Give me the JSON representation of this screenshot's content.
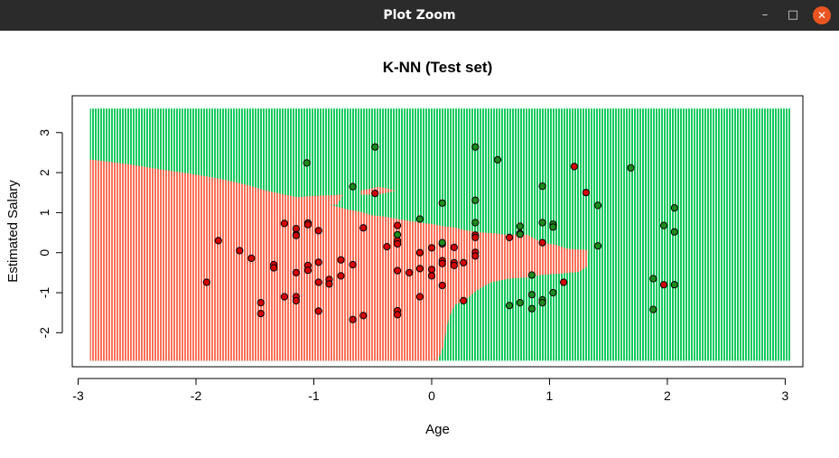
{
  "window": {
    "title": "Plot Zoom",
    "controls": {
      "minimize": "–",
      "maximize": "□",
      "close": "✕"
    }
  },
  "chart_data": {
    "type": "scatter",
    "title": "K-NN (Test set)",
    "xlabel": "Age",
    "ylabel": "Estimated Salary",
    "xlim": [
      -3.05,
      3.15
    ],
    "ylim": [
      -2.85,
      3.92
    ],
    "xticks": [
      -3,
      -2,
      -1,
      0,
      1,
      2,
      3
    ],
    "yticks": [
      -2,
      -1,
      0,
      1,
      2,
      3
    ],
    "grid": false,
    "legend": "none",
    "colors": {
      "region_class0": "#fa7159",
      "region_class1": "#13c95e",
      "point_class0": "#d40000",
      "point_class1": "#1c8a1c",
      "point_edge": "#000000"
    },
    "decision_region": {
      "x_range": [
        -2.9,
        3.05
      ],
      "y_range": [
        -2.7,
        3.6
      ],
      "class0_boundary": [
        [
          -2.9,
          2.33
        ],
        [
          -2.6,
          2.22
        ],
        [
          -2.3,
          2.08
        ],
        [
          -2.0,
          1.95
        ],
        [
          -1.8,
          1.85
        ],
        [
          -1.6,
          1.72
        ],
        [
          -1.4,
          1.55
        ],
        [
          -1.2,
          1.42
        ],
        [
          -1.0,
          1.3
        ],
        [
          -0.8,
          1.15
        ],
        [
          -0.7,
          1.07
        ],
        [
          -0.6,
          1.02
        ],
        [
          -0.5,
          0.93
        ],
        [
          -0.4,
          0.9
        ],
        [
          -0.3,
          0.85
        ],
        [
          -0.2,
          0.8
        ],
        [
          -0.1,
          0.75
        ],
        [
          0.0,
          0.72
        ],
        [
          0.1,
          0.66
        ],
        [
          0.2,
          0.63
        ],
        [
          0.3,
          0.55
        ],
        [
          0.45,
          0.5
        ],
        [
          0.55,
          0.48
        ],
        [
          0.65,
          0.44
        ],
        [
          0.75,
          0.46
        ],
        [
          0.82,
          0.44
        ],
        [
          0.88,
          0.34
        ],
        [
          0.95,
          0.24
        ],
        [
          1.05,
          0.2
        ],
        [
          1.15,
          0.1
        ],
        [
          1.27,
          0.08
        ],
        [
          1.33,
          0.06
        ],
        [
          1.32,
          -0.35
        ],
        [
          1.25,
          -0.48
        ],
        [
          1.1,
          -0.52
        ],
        [
          0.95,
          -0.55
        ],
        [
          0.8,
          -0.62
        ],
        [
          0.65,
          -0.65
        ],
        [
          0.5,
          -0.75
        ],
        [
          0.38,
          -0.95
        ],
        [
          0.28,
          -1.2
        ],
        [
          0.2,
          -1.3
        ],
        [
          0.15,
          -1.6
        ],
        [
          0.12,
          -2.0
        ],
        [
          0.1,
          -2.35
        ],
        [
          0.05,
          -2.7
        ],
        [
          -2.9,
          -2.7
        ]
      ],
      "class0_islands": [
        [
          [
            -1.17,
            1.38
          ],
          [
            -1.0,
            1.42
          ],
          [
            -0.75,
            1.45
          ],
          [
            -0.8,
            1.2
          ],
          [
            -1.17,
            1.18
          ]
        ],
        [
          [
            -0.6,
            1.55
          ],
          [
            -0.45,
            1.65
          ],
          [
            -0.3,
            1.55
          ],
          [
            -0.45,
            1.45
          ],
          [
            -0.6,
            1.45
          ]
        ]
      ]
    },
    "series": [
      {
        "name": "0",
        "points": [
          [
            -1.91,
            -0.74
          ],
          [
            -1.81,
            0.3
          ],
          [
            -1.63,
            0.05
          ],
          [
            -1.53,
            -0.14
          ],
          [
            -1.45,
            -1.25
          ],
          [
            -1.45,
            -1.52
          ],
          [
            -1.34,
            -0.3
          ],
          [
            -1.34,
            -0.38
          ],
          [
            -1.25,
            0.73
          ],
          [
            -1.25,
            -1.1
          ],
          [
            -1.15,
            0.6
          ],
          [
            -1.15,
            0.45
          ],
          [
            -1.15,
            0.43
          ],
          [
            -1.15,
            -0.5
          ],
          [
            -1.15,
            -1.1
          ],
          [
            -1.15,
            -1.2
          ],
          [
            -1.05,
            0.74
          ],
          [
            -1.05,
            0.7
          ],
          [
            -1.05,
            -0.32
          ],
          [
            -1.05,
            -0.44
          ],
          [
            -0.96,
            0.55
          ],
          [
            -0.96,
            -0.24
          ],
          [
            -0.96,
            -0.74
          ],
          [
            -0.96,
            -1.46
          ],
          [
            -0.87,
            -0.67
          ],
          [
            -0.87,
            -0.78
          ],
          [
            -0.77,
            -0.18
          ],
          [
            -0.77,
            -0.58
          ],
          [
            -0.67,
            -0.3
          ],
          [
            -0.67,
            -1.67
          ],
          [
            -0.58,
            0.62
          ],
          [
            -0.58,
            -1.57
          ],
          [
            -0.48,
            1.48
          ],
          [
            -0.38,
            0.15
          ],
          [
            -0.29,
            0.68
          ],
          [
            -0.29,
            0.3
          ],
          [
            -0.29,
            0.22
          ],
          [
            -0.29,
            -0.45
          ],
          [
            -0.29,
            -1.45
          ],
          [
            -0.29,
            -1.55
          ],
          [
            -0.19,
            -0.5
          ],
          [
            -0.1,
            0.0
          ],
          [
            -0.1,
            -0.4
          ],
          [
            -0.1,
            -1.1
          ],
          [
            0.0,
            0.12
          ],
          [
            0.0,
            -0.42
          ],
          [
            0.0,
            -0.58
          ],
          [
            0.09,
            0.22
          ],
          [
            0.09,
            -0.2
          ],
          [
            0.09,
            -0.27
          ],
          [
            0.09,
            -0.82
          ],
          [
            0.19,
            0.13
          ],
          [
            0.19,
            -0.25
          ],
          [
            0.19,
            -0.32
          ],
          [
            0.27,
            -0.25
          ],
          [
            0.27,
            -1.2
          ],
          [
            0.37,
            0.44
          ],
          [
            0.37,
            0.38
          ],
          [
            0.37,
            0.01
          ],
          [
            0.37,
            -0.08
          ],
          [
            0.66,
            0.38
          ],
          [
            0.75,
            0.48
          ],
          [
            0.94,
            0.25
          ],
          [
            1.12,
            -0.74
          ],
          [
            1.21,
            2.15
          ],
          [
            1.31,
            1.5
          ],
          [
            1.97,
            -0.8
          ]
        ]
      },
      {
        "name": "1",
        "points": [
          [
            -1.06,
            2.24
          ],
          [
            -0.67,
            1.65
          ],
          [
            -0.48,
            2.64
          ],
          [
            -0.29,
            0.45
          ],
          [
            -0.1,
            0.84
          ],
          [
            0.09,
            1.24
          ],
          [
            0.09,
            0.25
          ],
          [
            0.37,
            2.64
          ],
          [
            0.37,
            1.31
          ],
          [
            0.37,
            0.75
          ],
          [
            0.56,
            2.32
          ],
          [
            0.66,
            -1.32
          ],
          [
            0.75,
            0.66
          ],
          [
            0.75,
            0.46
          ],
          [
            0.75,
            -1.25
          ],
          [
            0.85,
            -0.56
          ],
          [
            0.85,
            -1.05
          ],
          [
            0.85,
            -1.4
          ],
          [
            0.94,
            1.66
          ],
          [
            0.94,
            0.75
          ],
          [
            0.94,
            -1.18
          ],
          [
            0.94,
            -1.25
          ],
          [
            1.03,
            0.71
          ],
          [
            1.03,
            0.64
          ],
          [
            1.03,
            -1.0
          ],
          [
            1.41,
            1.18
          ],
          [
            1.41,
            0.17
          ],
          [
            1.69,
            2.12
          ],
          [
            1.88,
            -0.65
          ],
          [
            1.88,
            -1.42
          ],
          [
            1.97,
            0.68
          ],
          [
            2.06,
            1.12
          ],
          [
            2.06,
            0.52
          ],
          [
            2.06,
            -0.8
          ]
        ]
      }
    ]
  }
}
